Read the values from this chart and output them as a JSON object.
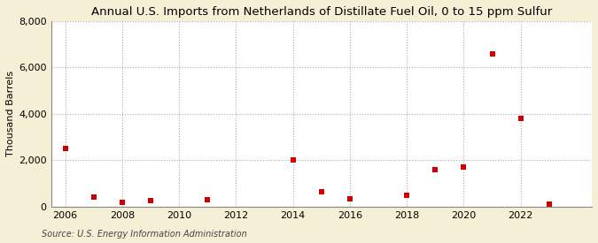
{
  "title": "Annual U.S. Imports from Netherlands of Distillate Fuel Oil, 0 to 15 ppm Sulfur",
  "ylabel": "Thousand Barrels",
  "source": "Source: U.S. Energy Information Administration",
  "background_color": "#f5efd5",
  "plot_area_color": "#ffffff",
  "marker_color": "#cc0000",
  "years": [
    2006,
    2007,
    2008,
    2009,
    2011,
    2014,
    2015,
    2016,
    2018,
    2019,
    2020,
    2021,
    2022,
    2023
  ],
  "values": [
    2500,
    400,
    200,
    250,
    300,
    2000,
    650,
    350,
    500,
    1600,
    1700,
    6600,
    3800,
    100
  ],
  "xlim": [
    2005.5,
    2024.5
  ],
  "ylim": [
    0,
    8000
  ],
  "yticks": [
    0,
    2000,
    4000,
    6000,
    8000
  ],
  "xticks": [
    2006,
    2008,
    2010,
    2012,
    2014,
    2016,
    2018,
    2020,
    2022
  ],
  "grid_color": "#aaaaaa",
  "title_fontsize": 9.5,
  "axis_fontsize": 8,
  "source_fontsize": 7
}
